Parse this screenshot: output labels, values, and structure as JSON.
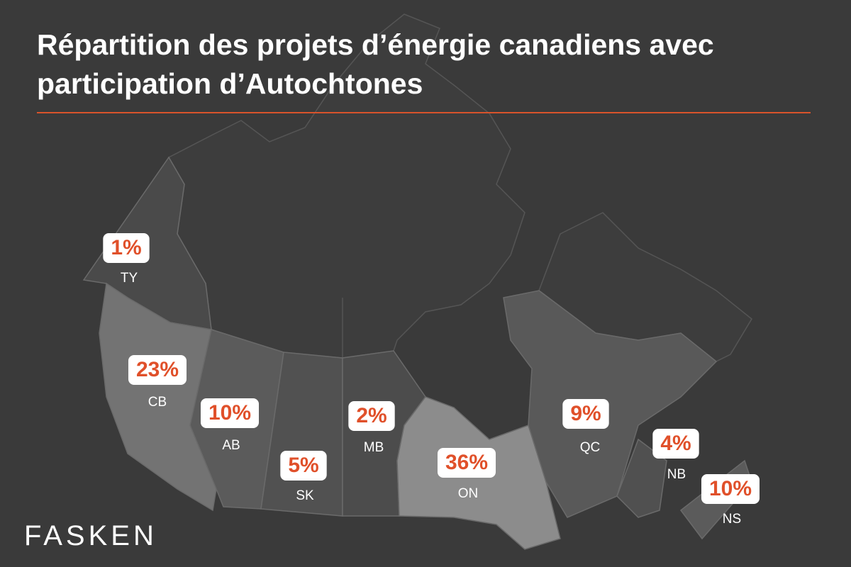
{
  "chart_data": {
    "type": "map",
    "title": "Répartition des projets d’énergie canadiens avec participation d’Autochtones",
    "categories": [
      "TY",
      "CB",
      "AB",
      "SK",
      "MB",
      "ON",
      "QC",
      "NB",
      "NS"
    ],
    "values": [
      1,
      23,
      10,
      5,
      2,
      36,
      9,
      4,
      10
    ],
    "value_labels": [
      "1%",
      "23%",
      "10%",
      "5%",
      "2%",
      "36%",
      "9%",
      "4%",
      "10%"
    ],
    "color": "#e0502a"
  },
  "brand": "FASKEN"
}
